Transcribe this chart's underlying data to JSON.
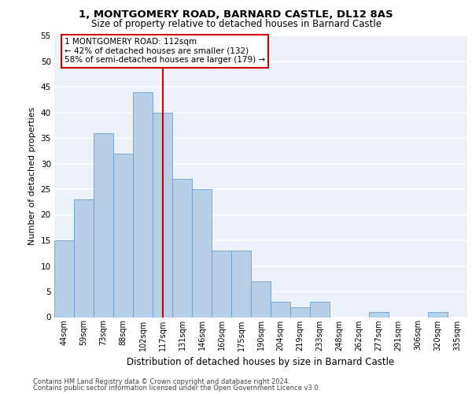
{
  "title1": "1, MONTGOMERY ROAD, BARNARD CASTLE, DL12 8AS",
  "title2": "Size of property relative to detached houses in Barnard Castle",
  "xlabel": "Distribution of detached houses by size in Barnard Castle",
  "ylabel": "Number of detached properties",
  "categories": [
    "44sqm",
    "59sqm",
    "73sqm",
    "88sqm",
    "102sqm",
    "117sqm",
    "131sqm",
    "146sqm",
    "160sqm",
    "175sqm",
    "190sqm",
    "204sqm",
    "219sqm",
    "233sqm",
    "248sqm",
    "262sqm",
    "277sqm",
    "291sqm",
    "306sqm",
    "320sqm",
    "335sqm"
  ],
  "values": [
    15,
    23,
    36,
    32,
    44,
    40,
    27,
    25,
    13,
    13,
    7,
    3,
    2,
    3,
    0,
    0,
    1,
    0,
    0,
    1,
    0
  ],
  "bar_color": "#b8cfe8",
  "bar_edgecolor": "#6ca0d0",
  "bg_color": "#edf2fa",
  "grid_color": "#ffffff",
  "vline_x": 5,
  "vline_color": "#cc0000",
  "annotation_text": "1 MONTGOMERY ROAD: 112sqm\n← 42% of detached houses are smaller (132)\n58% of semi-detached houses are larger (179) →",
  "annotation_box_color": "#cc0000",
  "ylim": [
    0,
    55
  ],
  "yticks": [
    0,
    5,
    10,
    15,
    20,
    25,
    30,
    35,
    40,
    45,
    50,
    55
  ],
  "footer1": "Contains HM Land Registry data © Crown copyright and database right 2024.",
  "footer2": "Contains public sector information licensed under the Open Government Licence v3.0."
}
